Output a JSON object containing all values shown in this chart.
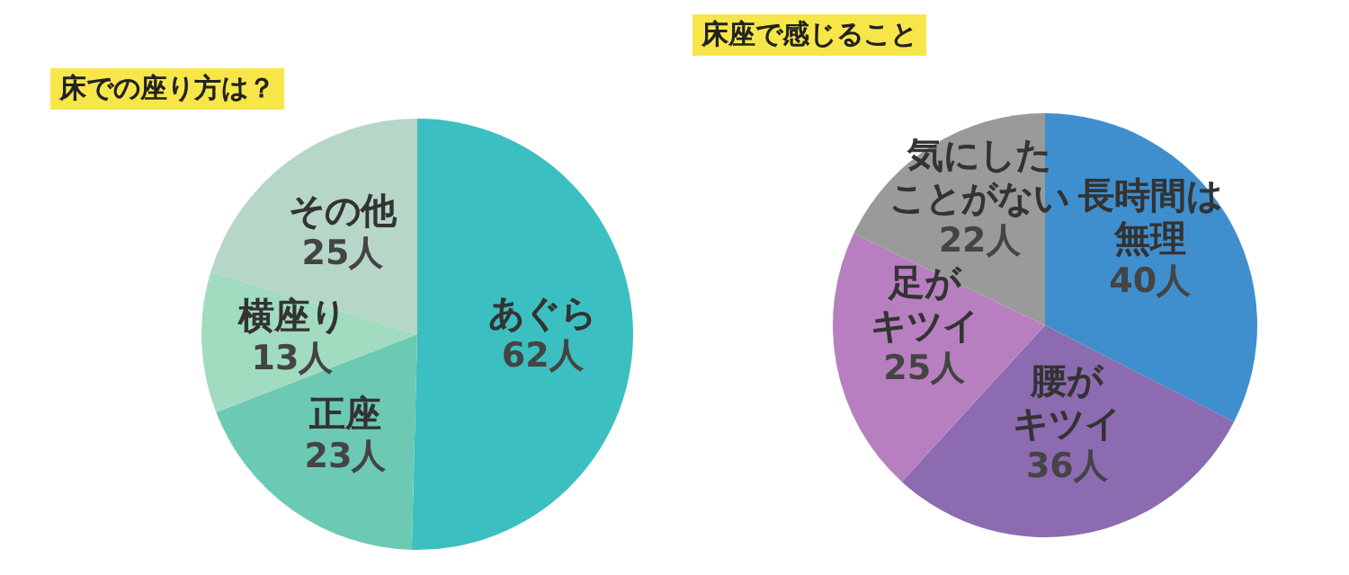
{
  "chart_data": [
    {
      "type": "pie",
      "title": "床での座り方は？",
      "categories": [
        "あぐら",
        "正座",
        "横座り",
        "その他"
      ],
      "values": [
        62,
        23,
        13,
        25
      ],
      "colors": [
        "#3bbfc0",
        "#6cc9b4",
        "#a2dcc0",
        "#b6d6c8"
      ],
      "value_labels": [
        "62人",
        "23人",
        "13人",
        "25人"
      ]
    },
    {
      "type": "pie",
      "title": "床座で感じること",
      "categories": [
        "長時間は無理",
        "腰がキツイ",
        "足がキツイ",
        "気にしたことがない"
      ],
      "values": [
        40,
        36,
        25,
        22
      ],
      "colors": [
        "#3f8fcf",
        "#8c6bb1",
        "#b87fc0",
        "#9a9a9a"
      ],
      "value_labels": [
        "40人",
        "36人",
        "25人",
        "22人"
      ]
    }
  ]
}
